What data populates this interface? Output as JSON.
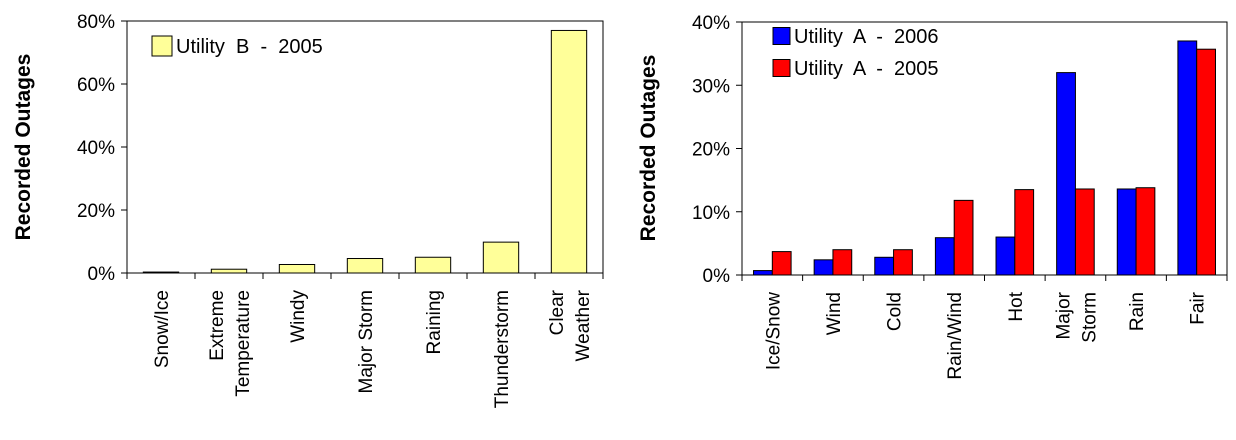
{
  "chart_data": [
    {
      "type": "bar",
      "categories": [
        "Snow/Ice",
        "Extreme Temperature",
        "Windy",
        "Major Storm",
        "Raining",
        "Thunderstorm",
        "Clear Weather"
      ],
      "category_lines": [
        [
          "Snow/Ice"
        ],
        [
          "Extreme",
          "Temperature"
        ],
        [
          "Windy"
        ],
        [
          "Major Storm"
        ],
        [
          "Raining"
        ],
        [
          "Thunderstorm"
        ],
        [
          "Clear",
          "Weather"
        ]
      ],
      "series": [
        {
          "name": "Utility  B  -  2005",
          "color": "#ffff99",
          "values": [
            0.3,
            1.2,
            2.7,
            4.6,
            5.0,
            9.8,
            77.0
          ]
        }
      ],
      "ylabel": "Recorded Outages",
      "xlabel": "",
      "ylim": [
        0,
        80
      ],
      "yticks": [
        0,
        20,
        40,
        60,
        80
      ],
      "ytick_labels": [
        "0%",
        "20%",
        "40%",
        "60%",
        "80%"
      ],
      "legend_position": "top-left",
      "grid": false
    },
    {
      "type": "bar",
      "categories": [
        "Ice/Snow",
        "Wind",
        "Cold",
        "Rain/Wind",
        "Hot",
        "Major Storm",
        "Rain",
        "Fair"
      ],
      "category_lines": [
        [
          "Ice/Snow"
        ],
        [
          "Wind"
        ],
        [
          "Cold"
        ],
        [
          "Rain/Wind"
        ],
        [
          "Hot"
        ],
        [
          "Major",
          "Storm"
        ],
        [
          "Rain"
        ],
        [
          "Fair"
        ]
      ],
      "series": [
        {
          "name": "Utility  A  -  2006",
          "color": "#0000ff",
          "values": [
            0.7,
            2.4,
            2.8,
            5.9,
            6.0,
            32.0,
            13.6,
            37.0
          ]
        },
        {
          "name": "Utility  A  -  2005",
          "color": "#ff0000",
          "values": [
            3.7,
            4.0,
            4.0,
            11.8,
            13.5,
            13.6,
            13.8,
            35.7
          ]
        }
      ],
      "ylabel": "Recorded Outages",
      "xlabel": "",
      "ylim": [
        0,
        40
      ],
      "yticks": [
        0,
        10,
        20,
        30,
        40
      ],
      "ytick_labels": [
        "0%",
        "10%",
        "20%",
        "30%",
        "40%"
      ],
      "legend_position": "top-left",
      "grid": false
    }
  ]
}
